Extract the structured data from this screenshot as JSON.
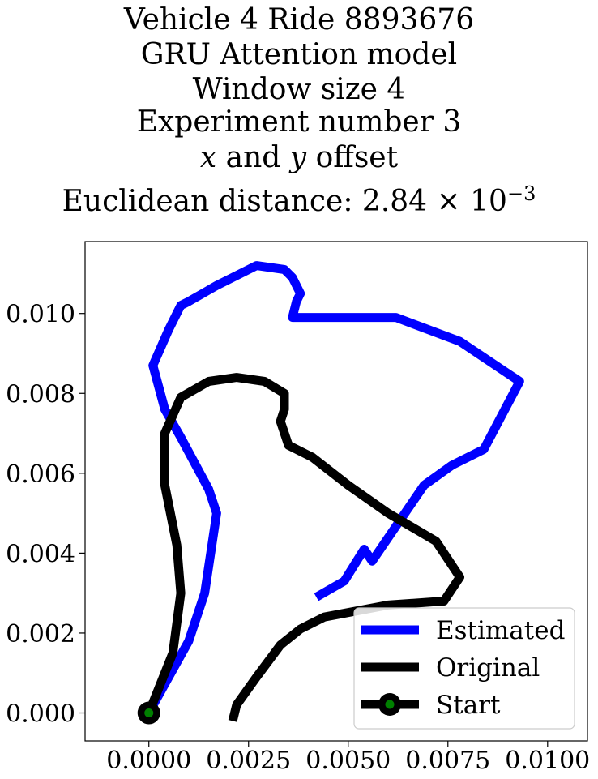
{
  "title_lines": [
    "Vehicle 4 Ride 8893676",
    "GRU Attention model",
    "Window size 4",
    "Experiment number 3"
  ],
  "offset_line": {
    "x": "x",
    "and": " and ",
    "y": "y",
    "rest": " offset"
  },
  "distance_line": {
    "prefix": "Euclidean distance: 2.84 × 10",
    "exponent": "−3"
  },
  "chart_data": {
    "type": "line",
    "xlabel": "",
    "ylabel": "",
    "xlim": [
      -0.0016,
      0.011
    ],
    "ylim": [
      -0.0007,
      0.0118
    ],
    "x_ticks": [
      0.0,
      0.0025,
      0.005,
      0.0075,
      0.01
    ],
    "x_tick_labels": [
      "0.0000",
      "0.0025",
      "0.0050",
      "0.0075",
      "0.0100"
    ],
    "y_ticks": [
      0.0,
      0.002,
      0.004,
      0.006,
      0.008,
      0.01
    ],
    "y_tick_labels": [
      "0.000",
      "0.002",
      "0.004",
      "0.006",
      "0.008",
      "0.010"
    ],
    "legend_position": "lower-right",
    "series": [
      {
        "name": "Estimated",
        "color": "#0000ff",
        "points": [
          [
            0.0,
            0.0
          ],
          [
            0.001,
            0.0018
          ],
          [
            0.0014,
            0.003
          ],
          [
            0.0017,
            0.005
          ],
          [
            0.0015,
            0.0056
          ],
          [
            0.0008,
            0.0069
          ],
          [
            0.0004,
            0.0076
          ],
          [
            0.0001,
            0.0087
          ],
          [
            0.0005,
            0.0096
          ],
          [
            0.0008,
            0.0102
          ],
          [
            0.001,
            0.0103
          ],
          [
            0.0017,
            0.0107
          ],
          [
            0.0023,
            0.011
          ],
          [
            0.0027,
            0.0112
          ],
          [
            0.0034,
            0.0111
          ],
          [
            0.0036,
            0.0109
          ],
          [
            0.0038,
            0.0105
          ],
          [
            0.0037,
            0.0103
          ],
          [
            0.0036,
            0.0099
          ],
          [
            0.0041,
            0.0099
          ],
          [
            0.0062,
            0.0099
          ],
          [
            0.0078,
            0.0093
          ],
          [
            0.0093,
            0.0083
          ],
          [
            0.0084,
            0.0066
          ],
          [
            0.0076,
            0.0062
          ],
          [
            0.0069,
            0.0057
          ],
          [
            0.0056,
            0.0038
          ],
          [
            0.0054,
            0.0041
          ],
          [
            0.0049,
            0.0033
          ],
          [
            0.0042,
            0.0029
          ]
        ]
      },
      {
        "name": "Original",
        "color": "#000000",
        "points": [
          [
            0.0,
            0.0
          ],
          [
            0.0006,
            0.0015
          ],
          [
            0.0008,
            0.003
          ],
          [
            0.0007,
            0.0042
          ],
          [
            0.0004,
            0.0057
          ],
          [
            0.0004,
            0.007
          ],
          [
            0.0008,
            0.0079
          ],
          [
            0.0015,
            0.0083
          ],
          [
            0.0022,
            0.0084
          ],
          [
            0.0029,
            0.0083
          ],
          [
            0.0034,
            0.008
          ],
          [
            0.0034,
            0.0076
          ],
          [
            0.0033,
            0.0073
          ],
          [
            0.0035,
            0.0067
          ],
          [
            0.0041,
            0.0064
          ],
          [
            0.005,
            0.0057
          ],
          [
            0.006,
            0.005
          ],
          [
            0.0072,
            0.0043
          ],
          [
            0.0078,
            0.0034
          ],
          [
            0.0074,
            0.0028
          ],
          [
            0.006,
            0.0027
          ],
          [
            0.0044,
            0.0024
          ],
          [
            0.0038,
            0.0021
          ],
          [
            0.0033,
            0.0017
          ],
          [
            0.0027,
            0.0009
          ],
          [
            0.0022,
            0.0002
          ],
          [
            0.0021,
            -0.0002
          ]
        ]
      }
    ],
    "start": {
      "name": "Start",
      "x": 0.0,
      "y": 0.0,
      "color": "#008000",
      "edge_color": "#000000"
    },
    "legend": [
      "Estimated",
      "Original",
      "Start"
    ]
  }
}
